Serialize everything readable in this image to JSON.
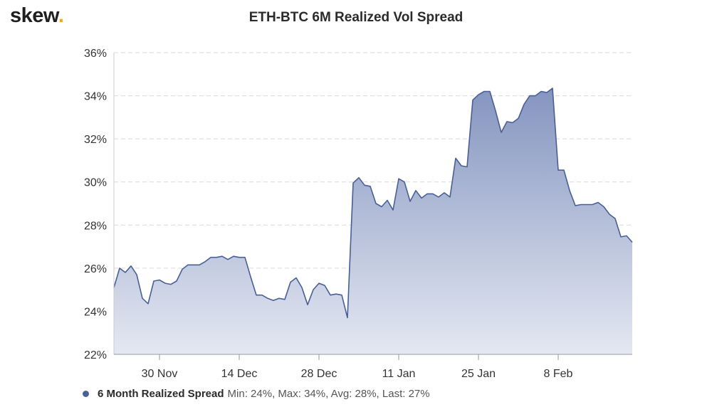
{
  "brand": {
    "logo_text": "skew",
    "logo_dot": ".",
    "logo_dot_color": "#f3a712"
  },
  "chart_data": {
    "type": "area",
    "title": "ETH-BTC 6M Realized Vol Spread",
    "xlabel": "",
    "ylabel": "",
    "x_tick_labels": [
      "30 Nov",
      "14 Dec",
      "28 Dec",
      "11 Jan",
      "25 Jan",
      "8 Feb"
    ],
    "x_tick_dates": [
      "2019-11-30",
      "2019-12-14",
      "2019-12-28",
      "2020-01-11",
      "2020-01-25",
      "2020-02-08"
    ],
    "y_tick_labels": [
      "22%",
      "24%",
      "26%",
      "28%",
      "30%",
      "32%",
      "34%",
      "36%"
    ],
    "y_ticks": [
      22,
      24,
      26,
      28,
      30,
      32,
      34,
      36
    ],
    "ylim": [
      22,
      36
    ],
    "y_unit": "%",
    "xlim": [
      "2019-11-22",
      "2020-02-21"
    ],
    "grid": "horizontal dashed",
    "legend_position": "bottom-left",
    "colors": {
      "line": "#4a5f95",
      "fill_top": "#8595c0",
      "fill_bottom": "#e4e8f2"
    },
    "series": [
      {
        "name": "6 Month Realized Spread",
        "stats_text": "Min: 24%, Max: 34%, Avg: 28%, Last: 27%",
        "points": [
          [
            "2019-11-22",
            25.1
          ],
          [
            "2019-11-23",
            26.0
          ],
          [
            "2019-11-24",
            25.8
          ],
          [
            "2019-11-25",
            26.1
          ],
          [
            "2019-11-26",
            25.7
          ],
          [
            "2019-11-27",
            24.6
          ],
          [
            "2019-11-28",
            24.35
          ],
          [
            "2019-11-29",
            25.4
          ],
          [
            "2019-11-30",
            25.45
          ],
          [
            "2019-12-01",
            25.3
          ],
          [
            "2019-12-02",
            25.25
          ],
          [
            "2019-12-03",
            25.4
          ],
          [
            "2019-12-04",
            25.95
          ],
          [
            "2019-12-05",
            26.15
          ],
          [
            "2019-12-06",
            26.15
          ],
          [
            "2019-12-07",
            26.15
          ],
          [
            "2019-12-08",
            26.3
          ],
          [
            "2019-12-09",
            26.5
          ],
          [
            "2019-12-10",
            26.5
          ],
          [
            "2019-12-11",
            26.55
          ],
          [
            "2019-12-12",
            26.4
          ],
          [
            "2019-12-13",
            26.55
          ],
          [
            "2019-12-14",
            26.5
          ],
          [
            "2019-12-15",
            26.5
          ],
          [
            "2019-12-16",
            25.6
          ],
          [
            "2019-12-17",
            24.75
          ],
          [
            "2019-12-18",
            24.75
          ],
          [
            "2019-12-19",
            24.6
          ],
          [
            "2019-12-20",
            24.5
          ],
          [
            "2019-12-21",
            24.6
          ],
          [
            "2019-12-22",
            24.55
          ],
          [
            "2019-12-23",
            25.35
          ],
          [
            "2019-12-24",
            25.55
          ],
          [
            "2019-12-25",
            25.1
          ],
          [
            "2019-12-26",
            24.3
          ],
          [
            "2019-12-27",
            25.0
          ],
          [
            "2019-12-28",
            25.3
          ],
          [
            "2019-12-29",
            25.2
          ],
          [
            "2019-12-30",
            24.75
          ],
          [
            "2019-12-31",
            24.8
          ],
          [
            "2020-01-01",
            24.75
          ],
          [
            "2020-01-02",
            23.7
          ],
          [
            "2020-01-03",
            29.95
          ],
          [
            "2020-01-04",
            30.2
          ],
          [
            "2020-01-05",
            29.85
          ],
          [
            "2020-01-06",
            29.8
          ],
          [
            "2020-01-07",
            29.0
          ],
          [
            "2020-01-08",
            28.85
          ],
          [
            "2020-01-09",
            29.15
          ],
          [
            "2020-01-10",
            28.7
          ],
          [
            "2020-01-11",
            30.15
          ],
          [
            "2020-01-12",
            30.0
          ],
          [
            "2020-01-13",
            29.1
          ],
          [
            "2020-01-14",
            29.6
          ],
          [
            "2020-01-15",
            29.25
          ],
          [
            "2020-01-16",
            29.45
          ],
          [
            "2020-01-17",
            29.45
          ],
          [
            "2020-01-18",
            29.3
          ],
          [
            "2020-01-19",
            29.5
          ],
          [
            "2020-01-20",
            29.3
          ],
          [
            "2020-01-21",
            31.1
          ],
          [
            "2020-01-22",
            30.75
          ],
          [
            "2020-01-23",
            30.7
          ],
          [
            "2020-01-24",
            33.8
          ],
          [
            "2020-01-25",
            34.05
          ],
          [
            "2020-01-26",
            34.2
          ],
          [
            "2020-01-27",
            34.2
          ],
          [
            "2020-01-28",
            33.3
          ],
          [
            "2020-01-29",
            32.3
          ],
          [
            "2020-01-30",
            32.8
          ],
          [
            "2020-01-31",
            32.75
          ],
          [
            "2020-02-01",
            32.95
          ],
          [
            "2020-02-02",
            33.6
          ],
          [
            "2020-02-03",
            34.0
          ],
          [
            "2020-02-04",
            34.0
          ],
          [
            "2020-02-05",
            34.2
          ],
          [
            "2020-02-06",
            34.15
          ],
          [
            "2020-02-07",
            34.35
          ],
          [
            "2020-02-08",
            30.55
          ],
          [
            "2020-02-09",
            30.55
          ],
          [
            "2020-02-10",
            29.6
          ],
          [
            "2020-02-11",
            28.9
          ],
          [
            "2020-02-12",
            28.95
          ],
          [
            "2020-02-13",
            28.95
          ],
          [
            "2020-02-14",
            28.95
          ],
          [
            "2020-02-15",
            29.05
          ],
          [
            "2020-02-16",
            28.85
          ],
          [
            "2020-02-17",
            28.5
          ],
          [
            "2020-02-18",
            28.3
          ],
          [
            "2020-02-19",
            27.45
          ],
          [
            "2020-02-20",
            27.5
          ],
          [
            "2020-02-21",
            27.2
          ]
        ]
      }
    ]
  }
}
